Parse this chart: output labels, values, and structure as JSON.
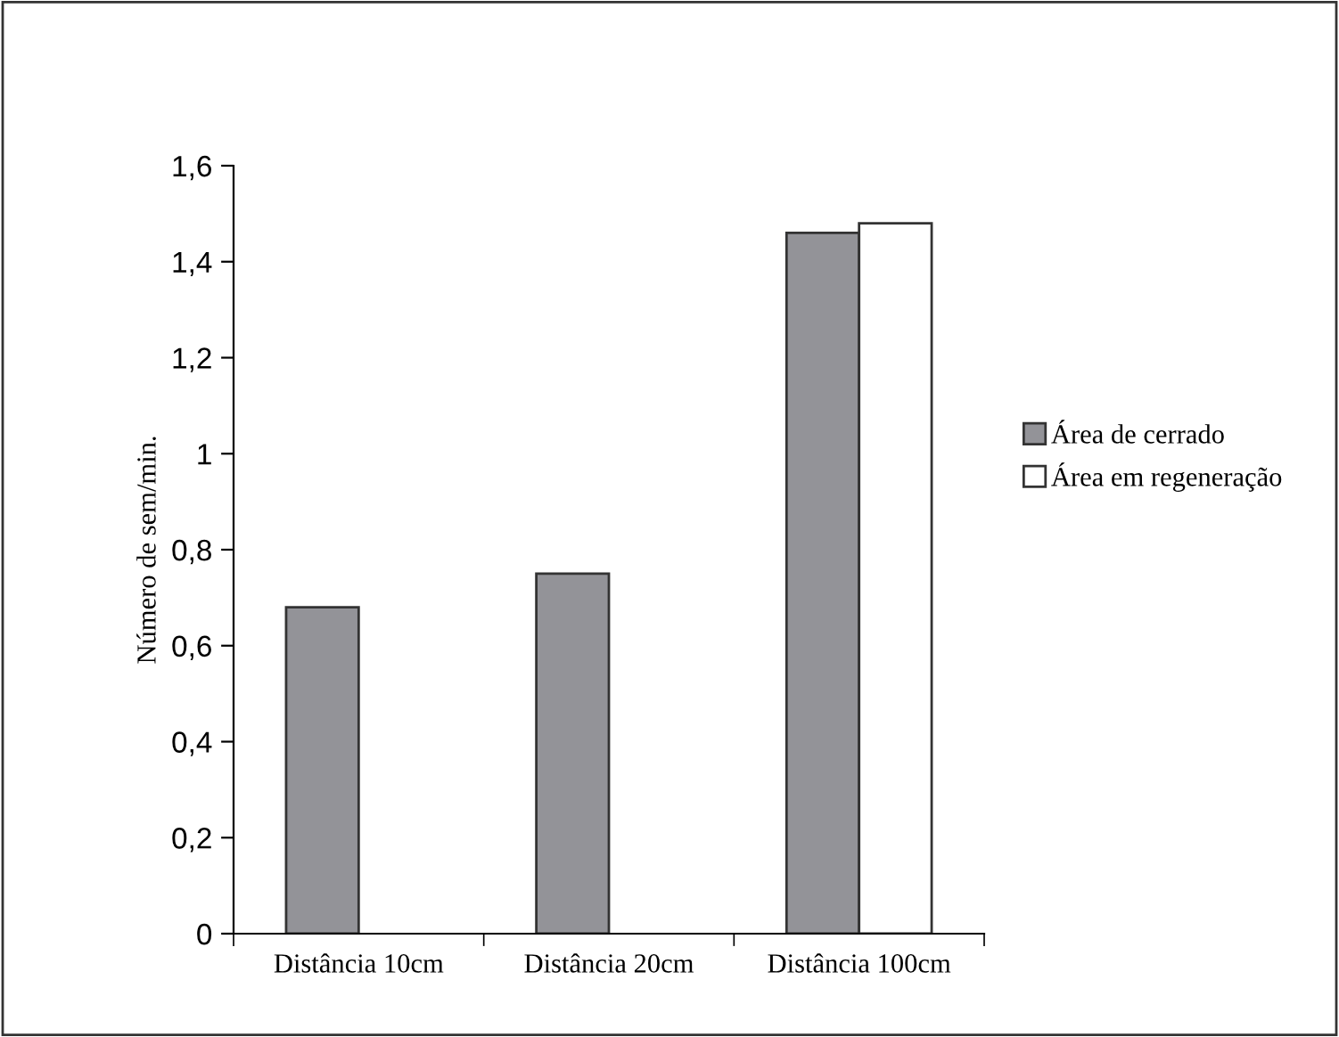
{
  "chart_data": {
    "type": "bar",
    "ylabel": "Número de sem/min.",
    "categories": [
      "Distância 10cm",
      "Distância 20cm",
      "Distância 100cm"
    ],
    "series": [
      {
        "name": "Área de cerrado",
        "color": "#939398",
        "values": [
          0.68,
          0.75,
          1.46
        ]
      },
      {
        "name": "Área em regeneração",
        "color": "#ffffff",
        "values": [
          null,
          null,
          1.48
        ]
      }
    ],
    "ylim": [
      0,
      1.6
    ],
    "yticks": [
      0,
      {
        "value": 0.2,
        "label": "0,2"
      },
      {
        "value": 0.4,
        "label": "0,4"
      },
      {
        "value": 0.6,
        "label": "0,6"
      },
      {
        "value": 0.8,
        "label": "0,8"
      },
      1,
      {
        "value": 1.2,
        "label": "1,2"
      },
      {
        "value": 1.4,
        "label": "1,4"
      },
      {
        "value": 1.6,
        "label": "1,6"
      }
    ],
    "grid": false,
    "legend": "right"
  }
}
